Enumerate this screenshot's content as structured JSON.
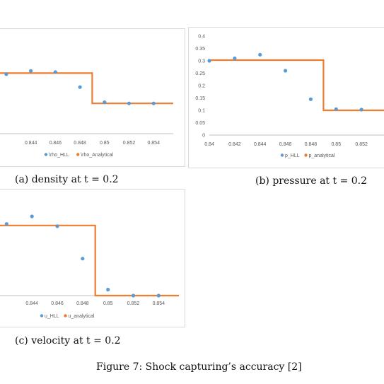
{
  "colors": {
    "series_points": "#5b9bd5",
    "series_line": "#ed7d31",
    "axis": "#bfbfbf",
    "tick": "#595959"
  },
  "captions": {
    "a": "(a) density at t = 0.2",
    "b": "(b) pressure at t = 0.2",
    "c": "(c) velocity at t = 0.2",
    "figure": "Figure 7: Shock capturing’s accuracy [2]"
  },
  "chart_data": [
    {
      "id": "density",
      "type": "scatter+line",
      "xticks": [
        "0.844",
        "0.846",
        "0.848",
        "0.85",
        "0.852",
        "0.854"
      ],
      "xlim": [
        0.8412,
        0.8556
      ],
      "ylim": [
        0.15,
        1.0
      ],
      "show_yticks": false,
      "series": [
        {
          "name": "\\rho_HLL",
          "kind": "scatter",
          "x": [
            0.842,
            0.844,
            0.846,
            0.848,
            0.85,
            0.852,
            0.854
          ],
          "y": [
            0.7,
            0.73,
            0.72,
            0.58,
            0.44,
            0.43,
            0.43
          ]
        },
        {
          "name": "\\rho_Analytical",
          "kind": "line",
          "x": [
            0.8412,
            0.849,
            0.849,
            0.8556
          ],
          "y": [
            0.71,
            0.71,
            0.43,
            0.43
          ]
        }
      ]
    },
    {
      "id": "pressure",
      "type": "scatter+line",
      "xticks": [
        "0.84",
        "0.842",
        "0.844",
        "0.846",
        "0.848",
        "0.85",
        "0.852"
      ],
      "yticks": [
        "0",
        "0.05",
        "0.1",
        "0.15",
        "0.2",
        "0.25",
        "0.3",
        "0.35",
        "0.4"
      ],
      "xlim": [
        0.84,
        0.854
      ],
      "ylim": [
        0,
        0.4
      ],
      "show_yticks": true,
      "series": [
        {
          "name": "p_HLL",
          "kind": "scatter",
          "x": [
            0.84,
            0.842,
            0.844,
            0.846,
            0.848,
            0.85,
            0.852
          ],
          "y": [
            0.3,
            0.31,
            0.325,
            0.26,
            0.145,
            0.105,
            0.103
          ]
        },
        {
          "name": "p_analytical",
          "kind": "line",
          "x": [
            0.84,
            0.849,
            0.849,
            0.854
          ],
          "y": [
            0.303,
            0.303,
            0.1,
            0.1
          ]
        }
      ]
    },
    {
      "id": "velocity",
      "type": "scatter+line",
      "xticks": [
        "0.844",
        "0.846",
        "0.848",
        "0.85",
        "0.852",
        "0.854"
      ],
      "xlim": [
        0.8412,
        0.8556
      ],
      "ylim": [
        0,
        1.2
      ],
      "show_yticks": false,
      "series": [
        {
          "name": "u_HLL",
          "kind": "scatter",
          "x": [
            0.842,
            0.844,
            0.846,
            0.848,
            0.85,
            0.852,
            0.854
          ],
          "y": [
            0.95,
            1.05,
            0.92,
            0.49,
            0.08,
            0.0,
            0.0
          ]
        },
        {
          "name": "u_analytical",
          "kind": "line",
          "x": [
            0.8412,
            0.849,
            0.849,
            0.8556
          ],
          "y": [
            0.93,
            0.93,
            0.0,
            0.0
          ]
        }
      ]
    }
  ]
}
